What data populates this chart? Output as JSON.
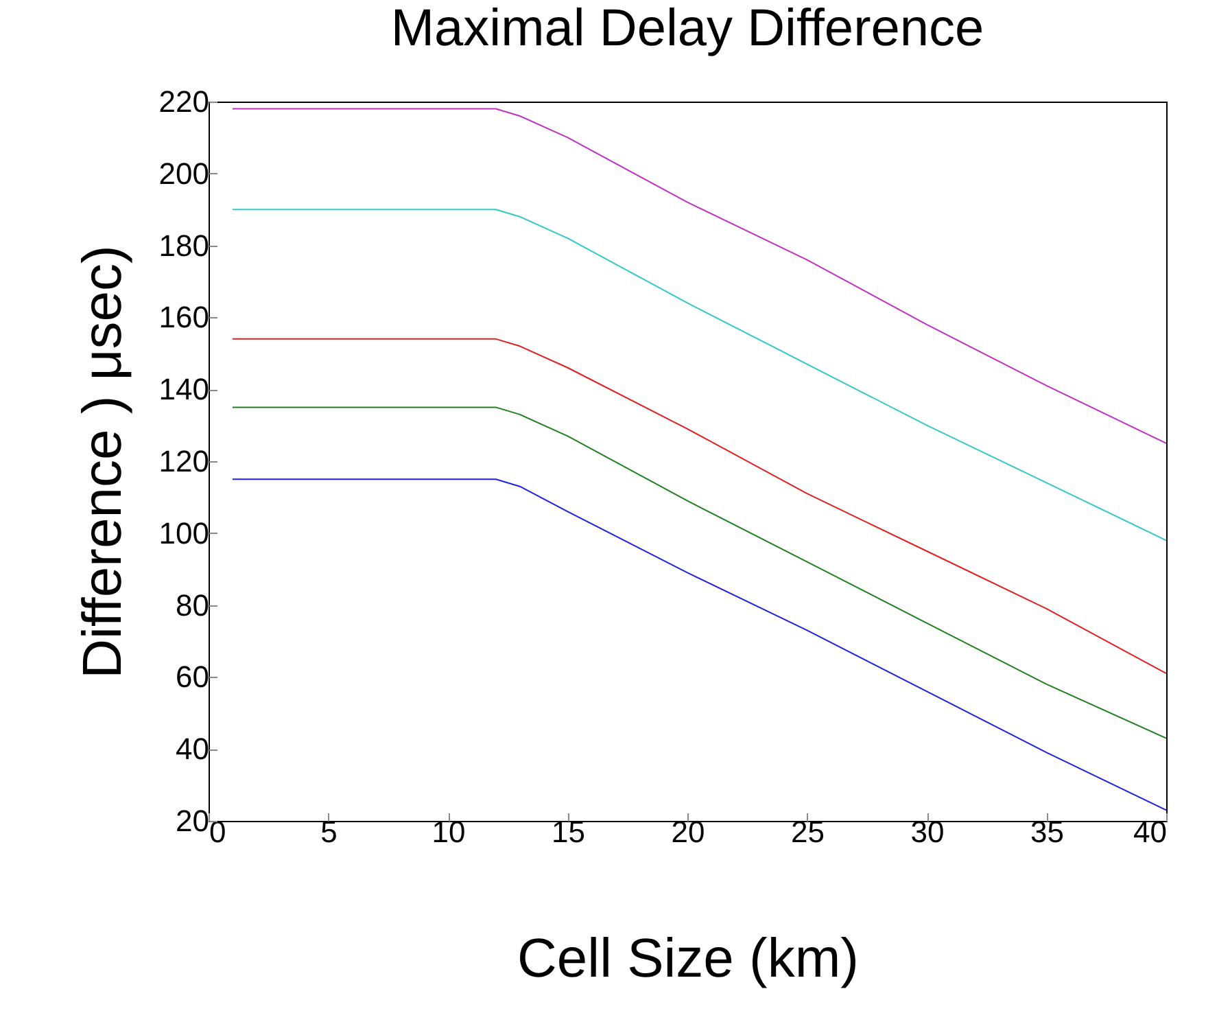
{
  "chart_data": {
    "type": "line",
    "title": "Maximal Delay Difference",
    "xlabel": "Cell Size (km)",
    "ylabel": "Difference ) μsec)",
    "x": [
      1,
      12,
      13,
      15,
      20,
      25,
      30,
      35,
      40
    ],
    "xlim": [
      0,
      40
    ],
    "xticks": [
      0,
      5,
      10,
      15,
      20,
      25,
      30,
      35,
      40
    ],
    "ylim": [
      20,
      220
    ],
    "yticks": [
      20,
      40,
      60,
      80,
      100,
      120,
      140,
      160,
      180,
      200,
      220
    ],
    "grid": false,
    "legend": false,
    "marker": "none",
    "line_style": "solid",
    "series": [
      {
        "color": "#c030c0",
        "values": [
          218,
          218,
          216,
          210,
          192,
          176,
          158,
          141,
          125
        ]
      },
      {
        "color": "#30c8c8",
        "values": [
          190,
          190,
          188,
          182,
          164,
          147,
          130,
          114,
          98
        ]
      },
      {
        "color": "#e02020",
        "values": [
          154,
          154,
          152,
          146,
          129,
          111,
          95,
          79,
          61
        ]
      },
      {
        "color": "#208020",
        "values": [
          135,
          135,
          133,
          127,
          109,
          92,
          75,
          58,
          43
        ]
      },
      {
        "color": "#2020e0",
        "values": [
          115,
          115,
          113,
          106,
          89,
          73,
          56,
          39,
          23
        ]
      }
    ]
  }
}
